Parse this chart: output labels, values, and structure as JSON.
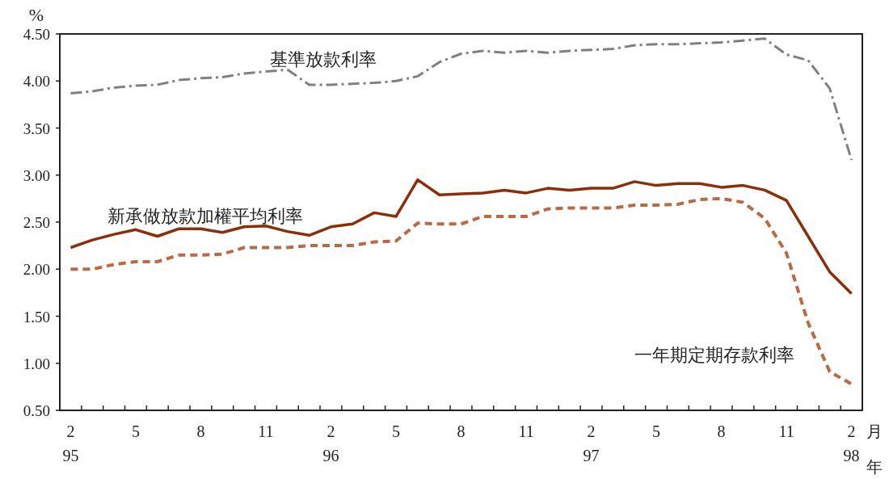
{
  "chart_data": {
    "type": "line",
    "ylabel": "%",
    "xlabel": "月",
    "annotations": [
      "年"
    ],
    "categories": [
      "2\n95",
      null,
      null,
      "5",
      null,
      null,
      "8",
      null,
      null,
      "11",
      null,
      null,
      "2\n96",
      null,
      null,
      "5",
      null,
      null,
      "8",
      null,
      null,
      "11",
      null,
      null,
      "2\n97",
      null,
      null,
      "5",
      null,
      null,
      "8",
      null,
      null,
      "11",
      null,
      null,
      "2\n98"
    ],
    "ylim": [
      0.5,
      4.5
    ],
    "yticks": [
      {
        "value": 0.5,
        "label": "0.50"
      },
      {
        "value": 1.0,
        "label": "1.00"
      },
      {
        "value": 1.5,
        "label": "1.50"
      },
      {
        "value": 2.0,
        "label": "2.00"
      },
      {
        "value": 2.5,
        "label": "2.50"
      },
      {
        "value": 3.0,
        "label": "3.00"
      },
      {
        "value": 3.5,
        "label": "3.50"
      },
      {
        "value": 4.0,
        "label": "4.00"
      },
      {
        "value": 4.5,
        "label": "4.50"
      }
    ],
    "grid": false,
    "legend": false,
    "marker": "none",
    "series": [
      {
        "name": "基準放款利率",
        "color": "#808080",
        "line_style": "dashdot",
        "values": [
          3.87,
          3.89,
          3.93,
          3.95,
          3.96,
          4.01,
          4.03,
          4.04,
          4.08,
          4.1,
          4.12,
          3.96,
          3.96,
          3.97,
          3.98,
          4.0,
          4.05,
          4.2,
          4.29,
          4.32,
          4.3,
          4.32,
          4.3,
          4.32,
          4.33,
          4.34,
          4.38,
          4.39,
          4.39,
          4.4,
          4.41,
          4.43,
          4.45,
          4.28,
          4.22,
          3.92,
          3.16
        ]
      },
      {
        "name": "新承做放款加權平均利率",
        "color": "#8b2e0a",
        "line_style": "solid",
        "values": [
          2.23,
          2.31,
          2.37,
          2.42,
          2.35,
          2.43,
          2.43,
          2.39,
          2.45,
          2.46,
          2.4,
          2.36,
          2.45,
          2.48,
          2.6,
          2.56,
          2.95,
          2.79,
          2.8,
          2.81,
          2.84,
          2.81,
          2.86,
          2.84,
          2.86,
          2.86,
          2.93,
          2.89,
          2.91,
          2.91,
          2.87,
          2.89,
          2.84,
          2.73,
          2.35,
          1.97,
          1.74
        ]
      },
      {
        "name": "一年期定期存款利率",
        "color": "#b86a45",
        "line_style": "dashed",
        "values": [
          2.0,
          2.0,
          2.05,
          2.08,
          2.08,
          2.15,
          2.15,
          2.16,
          2.23,
          2.23,
          2.23,
          2.25,
          2.25,
          2.25,
          2.29,
          2.3,
          2.49,
          2.48,
          2.48,
          2.56,
          2.56,
          2.56,
          2.64,
          2.65,
          2.65,
          2.65,
          2.68,
          2.68,
          2.69,
          2.74,
          2.75,
          2.71,
          2.54,
          2.17,
          1.43,
          0.91,
          0.78
        ]
      }
    ]
  }
}
